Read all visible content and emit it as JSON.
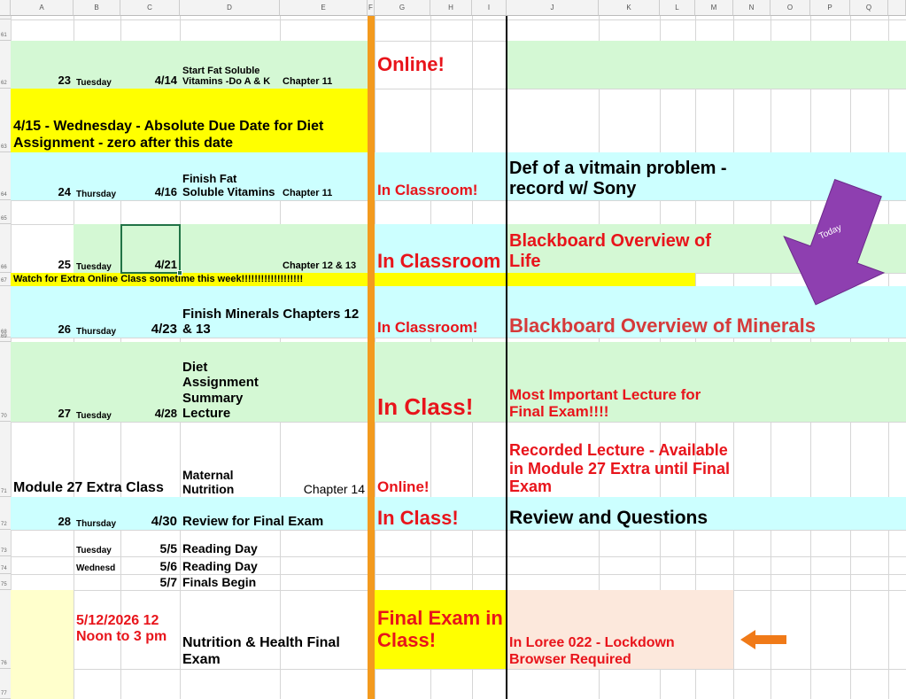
{
  "column_headers": [
    "A",
    "B",
    "C",
    "D",
    "E",
    "F",
    "G",
    "H",
    "I",
    "J",
    "K",
    "L",
    "M",
    "N",
    "O",
    "P",
    "Q"
  ],
  "row_numbers": [
    "61",
    "62",
    "63",
    "64",
    "65",
    "66",
    "67",
    "68",
    "69",
    "70",
    "71",
    "72",
    "73",
    "74",
    "75",
    "76",
    "77"
  ],
  "rows": [
    {
      "week": "23",
      "day": "Tuesday",
      "date": "4/14",
      "topic": "Start Fat Soluble Vitamins -Do A & K",
      "chapter": "Chapter 11",
      "location": "Online!"
    },
    {
      "notice": "4/15 - Wednesday - Absolute Due Date for Diet Assignment - zero after this date"
    },
    {
      "week": "24",
      "day": "Thursday",
      "date": "4/16",
      "topic": "Finish Fat Soluble Vitamins",
      "chapter": "Chapter 11",
      "location": "In Classroom!",
      "note": "Def of a vitmain problem - record w/ Sony"
    },
    {
      "week": "25",
      "day": "Tuesday",
      "date": "4/21",
      "chapter": "Chapter 12 & 13",
      "location": "In Classroom",
      "note": "Blackboard Overview of Life",
      "callout": "Today"
    },
    {
      "notice": "Watch for Extra Online Class sometime this week!!!!!!!!!!!!!!!!!!!"
    },
    {
      "week": "26",
      "day": "Thursday",
      "date": "4/23",
      "topic": "Finish Minerals Chapters 12 & 13",
      "location": "In Classroom!",
      "note": "Blackboard Overview of Minerals"
    },
    {
      "week": "27",
      "day": "Tuesday",
      "date": "4/28",
      "topic": "Diet Assignment Summary Lecture",
      "location": "In Class!",
      "note": "Most Important Lecture for Final Exam!!!!"
    },
    {
      "module": "Module 27 Extra Class",
      "topic": "Maternal Nutrition",
      "chapter": "Chapter 14",
      "location": "Online!",
      "note": "Recorded Lecture - Available in Module 27 Extra until Final Exam"
    },
    {
      "week": "28",
      "day": "Thursday",
      "date": "4/30",
      "topic": "Review for Final Exam",
      "location": "In Class!",
      "note": "Review and Questions"
    },
    {
      "day": "Tuesday",
      "date": "5/5",
      "topic": "Reading Day"
    },
    {
      "day": "Wednesd",
      "date": "5/6",
      "topic": "Reading Day"
    },
    {
      "date": "5/7",
      "topic": "Finals Begin"
    },
    {
      "when": "5/12/2026 12 Noon to 3 pm",
      "topic": "Nutrition & Health Final Exam",
      "location": "Final Exam in Class!",
      "note": "In Loree 022 - Lockdown Browser Required"
    }
  ]
}
